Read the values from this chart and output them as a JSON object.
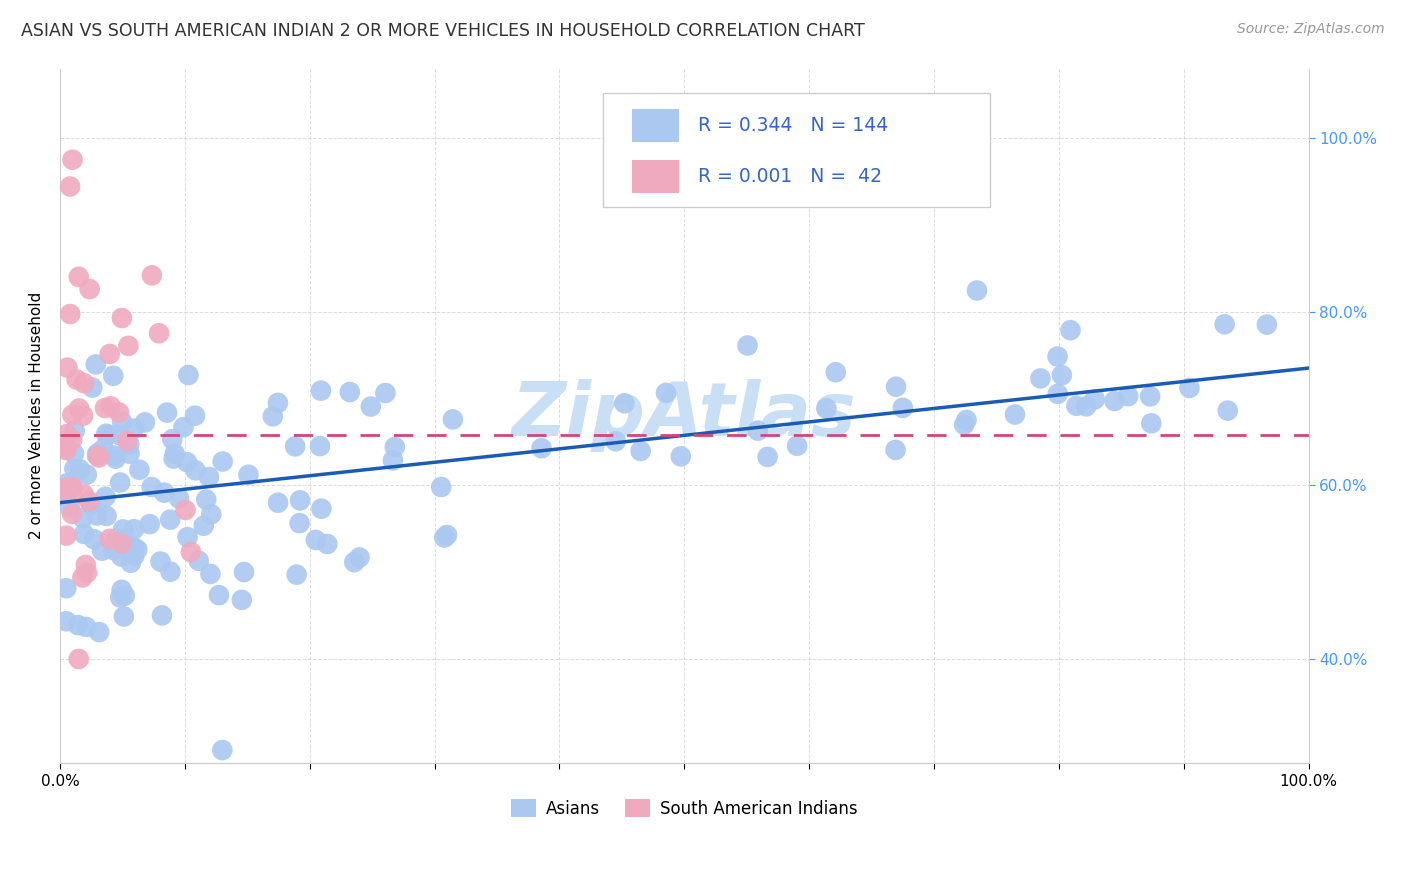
{
  "title": "ASIAN VS SOUTH AMERICAN INDIAN 2 OR MORE VEHICLES IN HOUSEHOLD CORRELATION CHART",
  "source": "Source: ZipAtlas.com",
  "ylabel": "2 or more Vehicles in Household",
  "xlim": [
    0.0,
    1.0
  ],
  "ylim": [
    0.28,
    1.08
  ],
  "legend_r_asian": "0.344",
  "legend_n_asian": "144",
  "legend_r_sai": "0.001",
  "legend_n_sai": " 42",
  "asian_color": "#aac8f0",
  "sai_color": "#f0aac0",
  "asian_line_color": "#1a5cb5",
  "sai_line_color": "#d04878",
  "watermark": "ZipAtlas",
  "legend_text_color": "#3366cc",
  "title_color": "#333333",
  "asian_trend_y0": 0.58,
  "asian_trend_y1": 0.735,
  "sai_trend_y": 0.658,
  "watermark_fontsize": 54,
  "watermark_color": "#c8dff5",
  "background_color": "#ffffff",
  "grid_color": "#cccccc",
  "right_tick_color": "#4499ff",
  "source_color": "#999999"
}
